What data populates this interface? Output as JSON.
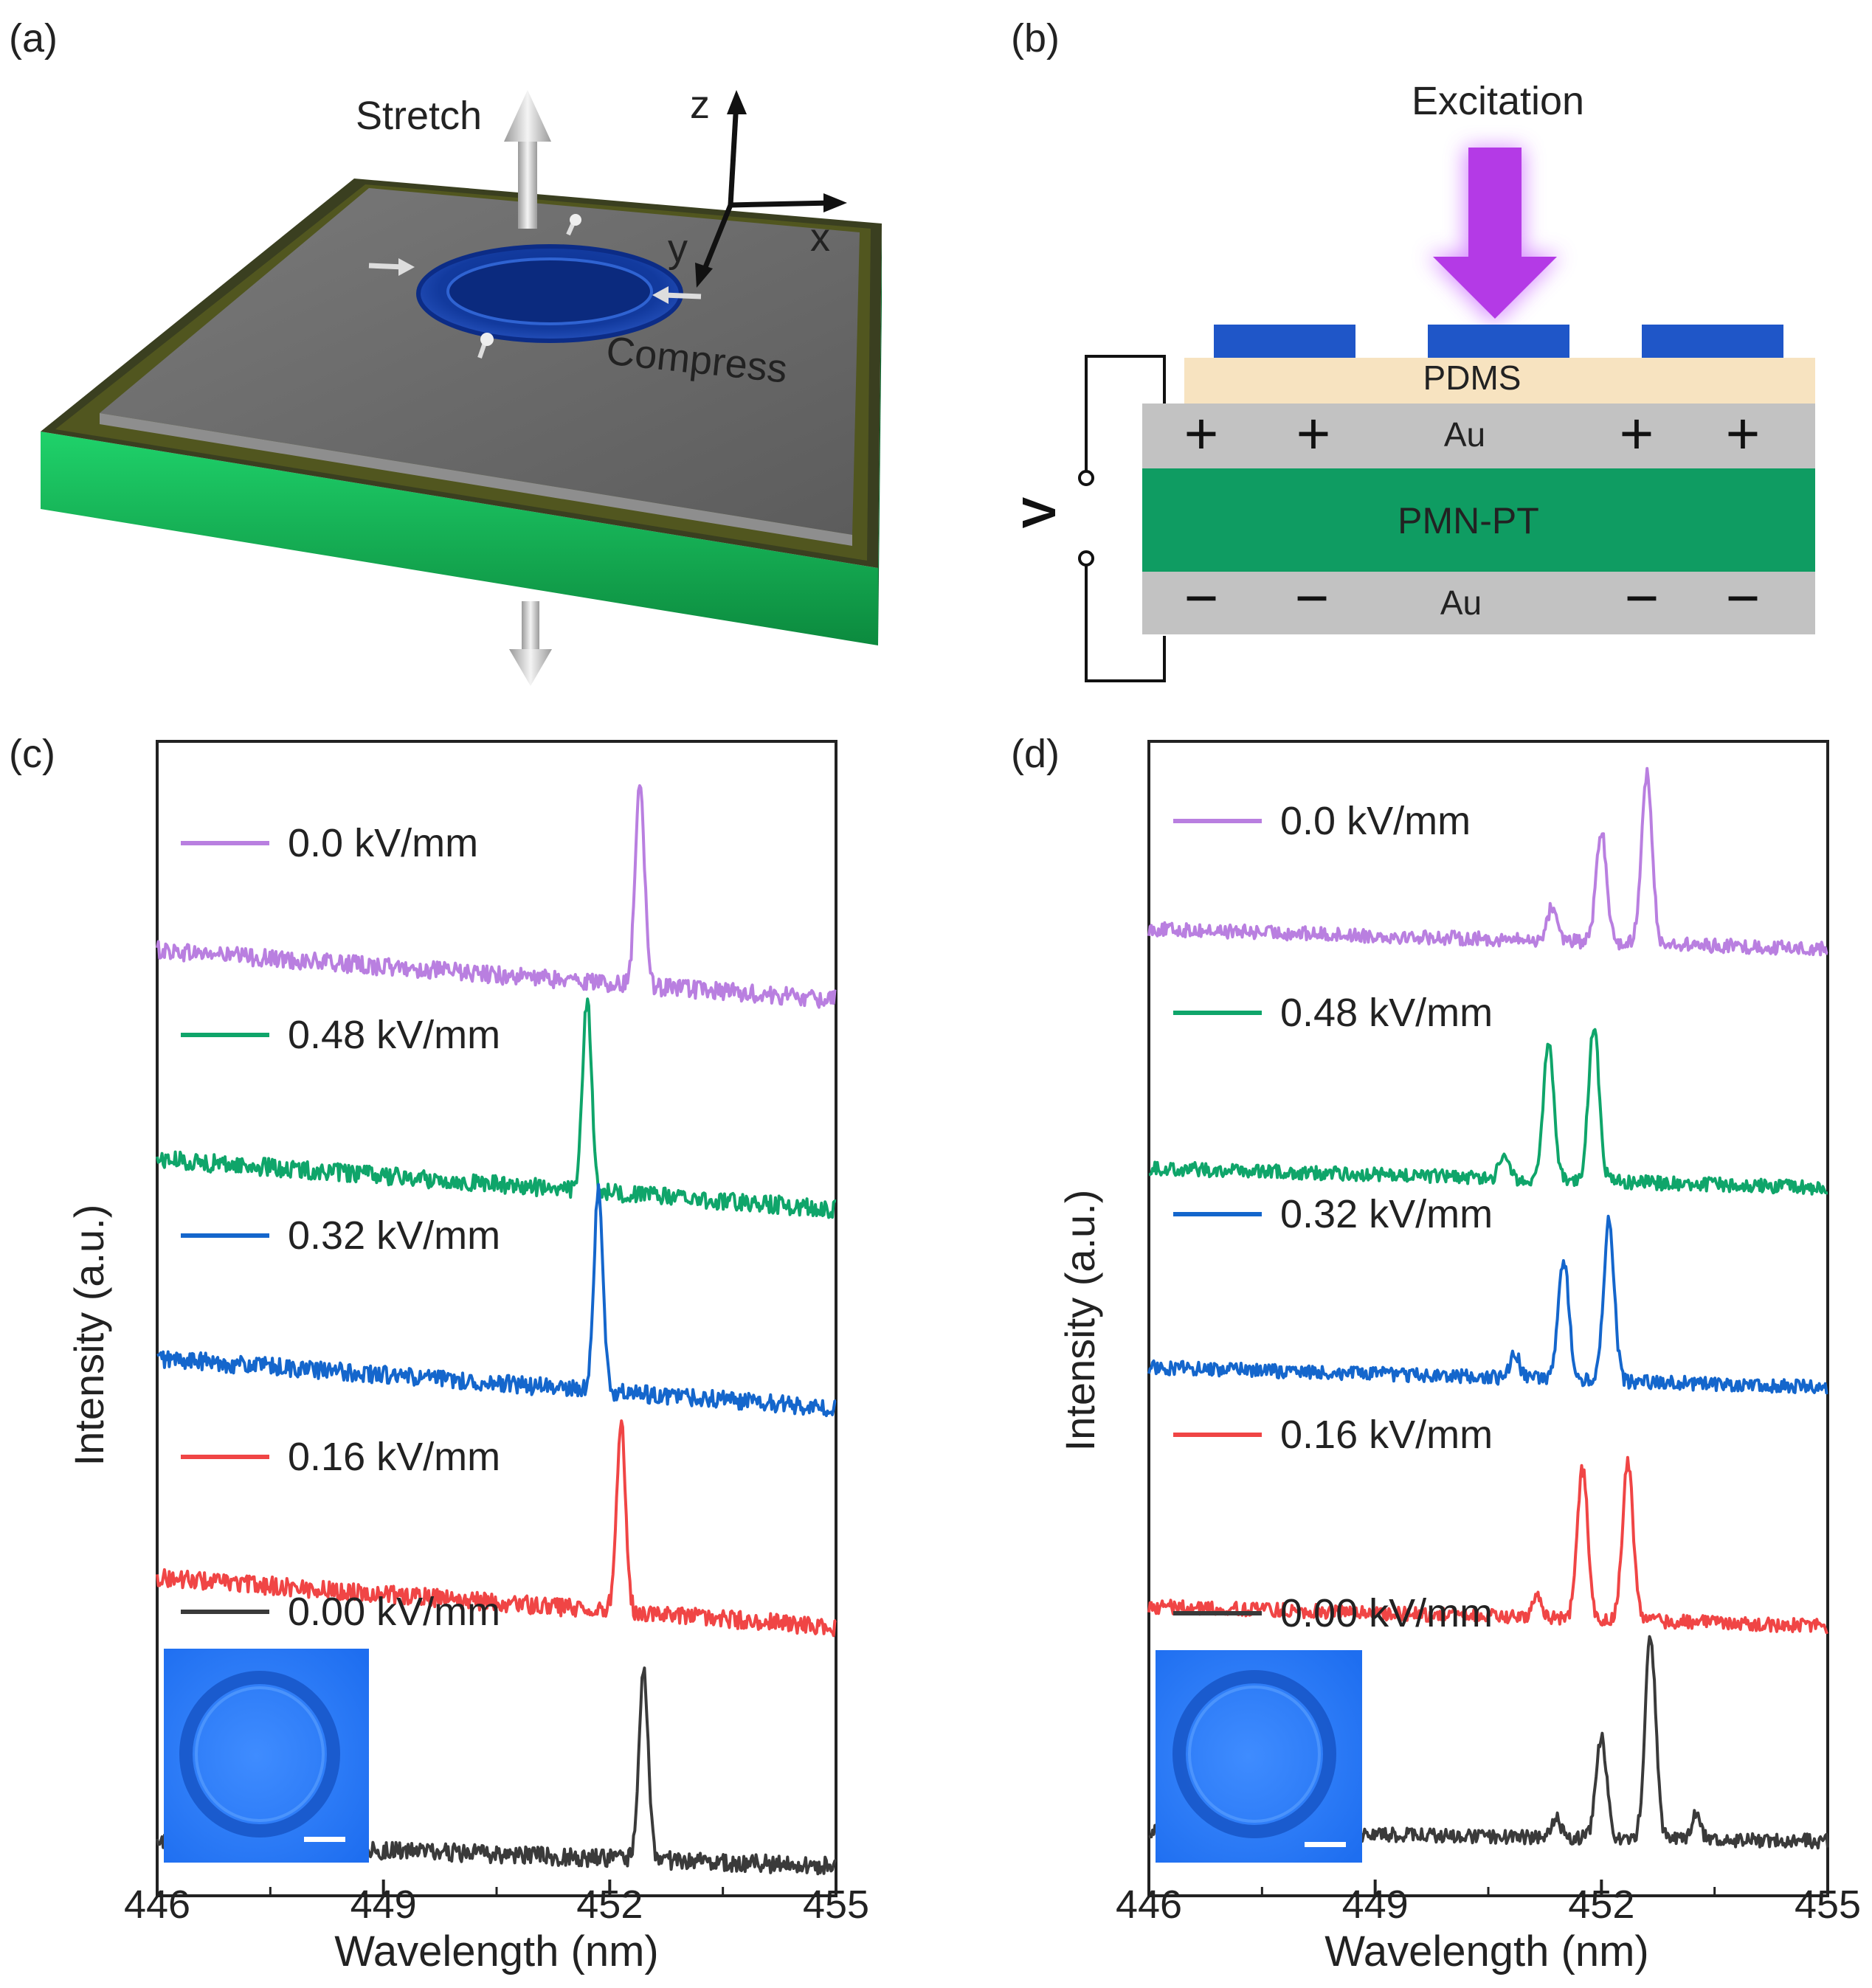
{
  "panels": {
    "a": {
      "label": "(a)",
      "stretch": "Stretch",
      "compress": "Compress",
      "axis_x": "x",
      "axis_y": "y",
      "axis_z": "z"
    },
    "b": {
      "label": "(b)",
      "excitation": "Excitation",
      "pdms": "PDMS",
      "au_top": "Au",
      "pmn": "PMN-PT",
      "au_bottom": "Au",
      "voltage": "V",
      "plus": "+",
      "minus": "−"
    },
    "c": {
      "label": "(c)"
    },
    "d": {
      "label": "(d)"
    }
  },
  "colors": {
    "violet": "#b97fe0",
    "green": "#0fa56a",
    "blue": "#1466cc",
    "red": "#f04545",
    "black": "#3a3a3a",
    "pmn_green": "#0f9c62",
    "au_gray": "#c2c2c2",
    "pdms_beige": "#f7e3c0",
    "electrode_blue": "#1f56c8",
    "excitation": "#b43ae6"
  },
  "chart_data": [
    {
      "type": "line",
      "panel": "c",
      "xlabel": "Wavelength (nm)",
      "ylabel": "Intensity (a.u.)",
      "xlim": [
        446,
        455
      ],
      "xticks": [
        "446",
        "449",
        "452",
        "455"
      ],
      "grid": false,
      "legend": "inline, left of each curve",
      "series": [
        {
          "name": "0.0 kV/mm",
          "color": "#b97fe0",
          "baseline": 4.6,
          "slope": -0.25,
          "peaks": [
            {
              "x": 452.4,
              "h": 1.05,
              "w": 0.06
            }
          ]
        },
        {
          "name": "0.48 kV/mm",
          "color": "#0fa56a",
          "baseline": 3.55,
          "slope": -0.25,
          "peaks": [
            {
              "x": 451.7,
              "h": 0.95,
              "w": 0.06
            }
          ]
        },
        {
          "name": "0.32 kV/mm",
          "color": "#1466cc",
          "baseline": 2.55,
          "slope": -0.25,
          "peaks": [
            {
              "x": 451.85,
              "h": 1.0,
              "w": 0.06
            }
          ]
        },
        {
          "name": "0.16 kV/mm",
          "color": "#f04545",
          "baseline": 1.45,
          "slope": -0.25,
          "peaks": [
            {
              "x": 452.15,
              "h": 0.95,
              "w": 0.06
            }
          ]
        },
        {
          "name": "0.00 kV/mm",
          "color": "#3a3a3a",
          "baseline": 0.12,
          "slope": -0.12,
          "peaks": [
            {
              "x": 452.45,
              "h": 0.95,
              "w": 0.06
            }
          ]
        }
      ]
    },
    {
      "type": "line",
      "panel": "d",
      "xlabel": "Wavelength (nm)",
      "ylabel": "Intensity (a.u.)",
      "xlim": [
        446,
        455
      ],
      "xticks": [
        "446",
        "449",
        "452",
        "455"
      ],
      "grid": false,
      "legend": "inline, left of each curve",
      "series": [
        {
          "name": "0.0 kV/mm",
          "color": "#b97fe0",
          "baseline": 4.65,
          "slope": -0.1,
          "peaks": [
            {
              "x": 451.35,
              "h": 0.17,
              "w": 0.07
            },
            {
              "x": 452.0,
              "h": 0.55,
              "w": 0.07
            },
            {
              "x": 452.6,
              "h": 0.85,
              "w": 0.07
            }
          ]
        },
        {
          "name": "0.48 kV/mm",
          "color": "#0fa56a",
          "baseline": 3.45,
          "slope": -0.1,
          "peaks": [
            {
              "x": 450.7,
              "h": 0.12,
              "w": 0.06
            },
            {
              "x": 451.3,
              "h": 0.68,
              "w": 0.07
            },
            {
              "x": 451.9,
              "h": 0.78,
              "w": 0.07
            }
          ]
        },
        {
          "name": "0.32 kV/mm",
          "color": "#1466cc",
          "baseline": 2.45,
          "slope": -0.1,
          "peaks": [
            {
              "x": 450.85,
              "h": 0.13,
              "w": 0.06
            },
            {
              "x": 451.5,
              "h": 0.6,
              "w": 0.07
            },
            {
              "x": 452.1,
              "h": 0.8,
              "w": 0.07
            }
          ]
        },
        {
          "name": "0.16 kV/mm",
          "color": "#f04545",
          "baseline": 1.25,
          "slope": -0.1,
          "peaks": [
            {
              "x": 451.15,
              "h": 0.13,
              "w": 0.06
            },
            {
              "x": 451.75,
              "h": 0.75,
              "w": 0.07
            },
            {
              "x": 452.35,
              "h": 0.8,
              "w": 0.07
            }
          ]
        },
        {
          "name": "0.00 kV/mm",
          "color": "#3a3a3a",
          "baseline": 0.12,
          "slope": -0.05,
          "peaks": [
            {
              "x": 451.4,
              "h": 0.1,
              "w": 0.06
            },
            {
              "x": 452.0,
              "h": 0.5,
              "w": 0.07
            },
            {
              "x": 452.65,
              "h": 1.02,
              "w": 0.07
            },
            {
              "x": 453.25,
              "h": 0.12,
              "w": 0.06
            }
          ]
        }
      ]
    }
  ]
}
